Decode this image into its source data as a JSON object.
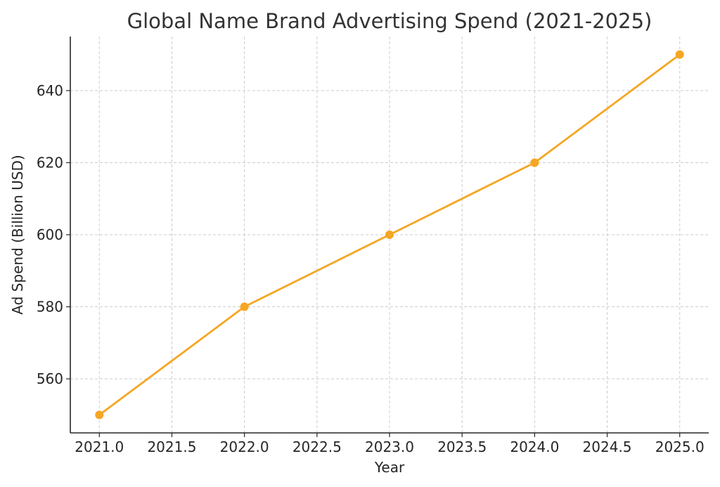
{
  "chart_data": {
    "type": "line",
    "title": "Global Name Brand Advertising Spend (2021-2025)",
    "xlabel": "Year",
    "ylabel": "Ad Spend (Billion USD)",
    "x": [
      2021,
      2022,
      2023,
      2024,
      2025
    ],
    "series": [
      {
        "values": [
          550,
          580,
          600,
          620,
          650
        ],
        "color": "#f5a623"
      }
    ],
    "x_ticks": [
      "2021.0",
      "2021.5",
      "2022.0",
      "2022.5",
      "2023.0",
      "2023.5",
      "2024.0",
      "2024.5",
      "2025.0"
    ],
    "y_ticks": [
      "560",
      "580",
      "600",
      "620",
      "640"
    ],
    "xlim": [
      2020.8,
      2025.2
    ],
    "ylim": [
      545,
      655
    ],
    "grid": true,
    "marker": "circle"
  }
}
